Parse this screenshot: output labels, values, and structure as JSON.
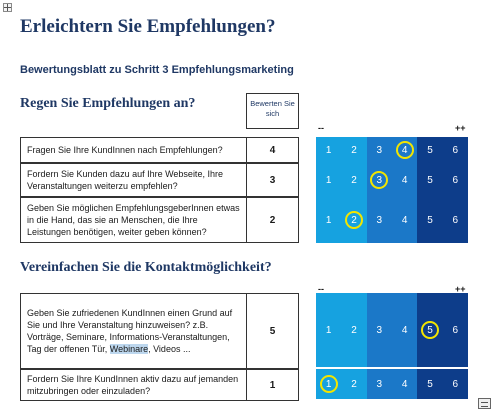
{
  "title": "Erleichtern Sie Empfehlungen?",
  "subtitle": "Bewertungsblatt zu Schritt 3 Empfehlungsmarketing",
  "rating_header": "Bewerten Sie sich",
  "scale_labels": {
    "low": "--",
    "high": "++"
  },
  "scale_values": [
    "1",
    "2",
    "3",
    "4",
    "5",
    "6"
  ],
  "colors": {
    "light_blue": "#16a2e0",
    "medium_blue": "#1b78c8",
    "dark_blue": "#0d3d8a",
    "ring": "#f2e500",
    "heading": "#1f3864"
  },
  "sections": [
    {
      "heading": "Regen Sie Empfehlungen an?",
      "questions": [
        {
          "text": "Fragen Sie Ihre KundInnen nach Empfehlungen?",
          "rating": "4",
          "selected": 4
        },
        {
          "text": "Fordern Sie Kunden dazu auf Ihre Webseite, Ihre Veranstaltungen weiterzu empfehlen?",
          "rating": "3",
          "selected": 3
        },
        {
          "text": "Geben Sie möglichen EmpfehlungsgeberInnen etwas in die Hand, das sie an Menschen, die Ihre Leistungen benötigen, weiter geben können?",
          "rating": "2",
          "selected": 2
        }
      ]
    },
    {
      "heading": "Vereinfachen Sie die Kontaktmöglichkeit?",
      "questions": [
        {
          "text_before": "Geben Sie zufriedenen KundInnen einen Grund auf Sie und Ihre Veranstaltung hinzuweisen? z.B. Vorträge, Seminare, Informations-Veranstaltungen, Tag der offenen Tür, ",
          "text_highlight": "Webinare",
          "text_after": ", Videos ...",
          "rating": "5",
          "selected": 5
        },
        {
          "text": "Fordern Sie Ihre KundInnen aktiv dazu auf jemanden mitzubringen oder einzuladen?",
          "rating": "1",
          "selected": 1
        }
      ]
    }
  ]
}
